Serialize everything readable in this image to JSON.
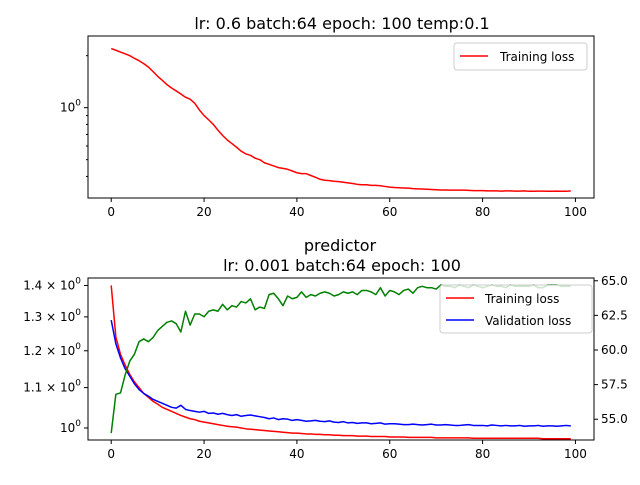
{
  "chart_data": [
    {
      "type": "line",
      "title": "lr: 0.6 batch:64 epoch: 100 temp:0.1",
      "yscale": "log",
      "xlim": [
        -5,
        104
      ],
      "ylim": [
        0.3,
        2.6
      ],
      "x_ticks": [
        0,
        20,
        40,
        60,
        80,
        100
      ],
      "y_ticks": [
        {
          "value": 1.0,
          "label": "10^0"
        }
      ],
      "legend": "top-right",
      "series": [
        {
          "name": "Training loss",
          "color": "#ff0000",
          "axis": "left",
          "x": [
            0,
            1,
            2,
            3,
            4,
            5,
            6,
            7,
            8,
            9,
            10,
            11,
            12,
            13,
            14,
            15,
            16,
            17,
            18,
            19,
            20,
            21,
            22,
            23,
            24,
            25,
            26,
            27,
            28,
            29,
            30,
            31,
            32,
            33,
            34,
            35,
            36,
            37,
            38,
            39,
            40,
            41,
            42,
            43,
            44,
            45,
            46,
            47,
            48,
            49,
            50,
            51,
            52,
            53,
            54,
            55,
            56,
            57,
            58,
            59,
            60,
            61,
            62,
            63,
            64,
            65,
            66,
            67,
            68,
            69,
            70,
            71,
            72,
            73,
            74,
            75,
            76,
            77,
            78,
            79,
            80,
            81,
            82,
            83,
            84,
            85,
            86,
            87,
            88,
            89,
            90,
            91,
            92,
            93,
            94,
            95,
            96,
            97,
            98,
            99
          ],
          "values": [
            2.2,
            2.15,
            2.1,
            2.05,
            2.0,
            1.93,
            1.87,
            1.8,
            1.72,
            1.62,
            1.52,
            1.44,
            1.36,
            1.3,
            1.25,
            1.2,
            1.15,
            1.12,
            1.06,
            0.97,
            0.9,
            0.85,
            0.8,
            0.74,
            0.69,
            0.65,
            0.62,
            0.59,
            0.56,
            0.54,
            0.53,
            0.51,
            0.5,
            0.48,
            0.47,
            0.46,
            0.45,
            0.445,
            0.44,
            0.43,
            0.42,
            0.415,
            0.415,
            0.405,
            0.395,
            0.385,
            0.38,
            0.378,
            0.375,
            0.373,
            0.37,
            0.367,
            0.364,
            0.36,
            0.358,
            0.358,
            0.355,
            0.355,
            0.353,
            0.35,
            0.347,
            0.345,
            0.344,
            0.343,
            0.342,
            0.34,
            0.339,
            0.338,
            0.337,
            0.336,
            0.335,
            0.334,
            0.334,
            0.333,
            0.333,
            0.333,
            0.333,
            0.332,
            0.331,
            0.331,
            0.331,
            0.33,
            0.33,
            0.33,
            0.329,
            0.33,
            0.33,
            0.329,
            0.329,
            0.33,
            0.328,
            0.328,
            0.329,
            0.329,
            0.328,
            0.328,
            0.329,
            0.328,
            0.328,
            0.33
          ]
        }
      ]
    },
    {
      "type": "line",
      "title": "predictor",
      "subtitle": "lr: 0.001 batch:64 epoch: 100",
      "yscale": "log",
      "xlim": [
        -5,
        104
      ],
      "ylim": [
        0.972,
        1.425
      ],
      "y2lim": [
        53.5,
        65.2
      ],
      "x_ticks": [
        0,
        20,
        40,
        60,
        80,
        100
      ],
      "y_ticks": [
        {
          "value": 1.4,
          "label": "1.4 × 10^0"
        },
        {
          "value": 1.3,
          "label": "1.3 × 10^0"
        },
        {
          "value": 1.2,
          "label": "1.2 × 10^0"
        },
        {
          "value": 1.1,
          "label": "1.1 × 10^0"
        },
        {
          "value": 1.0,
          "label": "10^0"
        }
      ],
      "y2_ticks": [
        55.0,
        57.5,
        60.0,
        62.5,
        65.0
      ],
      "legend": "top-right",
      "series": [
        {
          "name": "Training loss",
          "color": "#ff0000",
          "axis": "left",
          "x": [
            0,
            1,
            2,
            3,
            4,
            5,
            6,
            7,
            8,
            9,
            10,
            11,
            12,
            13,
            14,
            15,
            16,
            17,
            18,
            19,
            20,
            21,
            22,
            23,
            24,
            25,
            26,
            27,
            28,
            29,
            30,
            31,
            32,
            33,
            34,
            35,
            36,
            37,
            38,
            39,
            40,
            41,
            42,
            43,
            44,
            45,
            46,
            47,
            48,
            49,
            50,
            51,
            52,
            53,
            54,
            55,
            56,
            57,
            58,
            59,
            60,
            61,
            62,
            63,
            64,
            65,
            66,
            67,
            68,
            69,
            70,
            71,
            72,
            73,
            74,
            75,
            76,
            77,
            78,
            79,
            80,
            81,
            82,
            83,
            84,
            85,
            86,
            87,
            88,
            89,
            90,
            91,
            92,
            93,
            94,
            95,
            96,
            97,
            98,
            99
          ],
          "values": [
            1.4,
            1.24,
            1.19,
            1.16,
            1.135,
            1.115,
            1.1,
            1.085,
            1.075,
            1.065,
            1.058,
            1.05,
            1.045,
            1.04,
            1.035,
            1.03,
            1.026,
            1.022,
            1.02,
            1.016,
            1.014,
            1.012,
            1.01,
            1.008,
            1.006,
            1.004,
            1.003,
            1.002,
            1.0,
            0.998,
            0.997,
            0.996,
            0.995,
            0.994,
            0.993,
            0.992,
            0.991,
            0.99,
            0.989,
            0.988,
            0.988,
            0.987,
            0.986,
            0.986,
            0.985,
            0.985,
            0.984,
            0.984,
            0.983,
            0.983,
            0.982,
            0.982,
            0.982,
            0.981,
            0.981,
            0.981,
            0.98,
            0.98,
            0.98,
            0.98,
            0.979,
            0.979,
            0.979,
            0.979,
            0.978,
            0.978,
            0.978,
            0.978,
            0.978,
            0.978,
            0.977,
            0.977,
            0.977,
            0.977,
            0.977,
            0.977,
            0.977,
            0.977,
            0.976,
            0.976,
            0.976,
            0.976,
            0.976,
            0.976,
            0.976,
            0.976,
            0.976,
            0.976,
            0.976,
            0.976,
            0.976,
            0.976,
            0.976,
            0.975,
            0.975,
            0.975,
            0.975,
            0.975,
            0.975,
            0.975
          ]
        },
        {
          "name": "Validation loss",
          "color": "#0000ff",
          "axis": "left",
          "x": [
            0,
            1,
            2,
            3,
            4,
            5,
            6,
            7,
            8,
            9,
            10,
            11,
            12,
            13,
            14,
            15,
            16,
            17,
            18,
            19,
            20,
            21,
            22,
            23,
            24,
            25,
            26,
            27,
            28,
            29,
            30,
            31,
            32,
            33,
            34,
            35,
            36,
            37,
            38,
            39,
            40,
            41,
            42,
            43,
            44,
            45,
            46,
            47,
            48,
            49,
            50,
            51,
            52,
            53,
            54,
            55,
            56,
            57,
            58,
            59,
            60,
            61,
            62,
            63,
            64,
            65,
            66,
            67,
            68,
            69,
            70,
            71,
            72,
            73,
            74,
            75,
            76,
            77,
            78,
            79,
            80,
            81,
            82,
            83,
            84,
            85,
            86,
            87,
            88,
            89,
            90,
            91,
            92,
            93,
            94,
            95,
            96,
            97,
            98,
            99
          ],
          "values": [
            1.29,
            1.22,
            1.18,
            1.15,
            1.13,
            1.11,
            1.095,
            1.085,
            1.078,
            1.07,
            1.065,
            1.06,
            1.055,
            1.05,
            1.048,
            1.055,
            1.045,
            1.042,
            1.04,
            1.038,
            1.04,
            1.035,
            1.036,
            1.033,
            1.035,
            1.032,
            1.03,
            1.032,
            1.028,
            1.03,
            1.031,
            1.029,
            1.027,
            1.025,
            1.022,
            1.024,
            1.02,
            1.022,
            1.021,
            1.018,
            1.02,
            1.018,
            1.016,
            1.017,
            1.018,
            1.016,
            1.015,
            1.017,
            1.014,
            1.013,
            1.015,
            1.012,
            1.013,
            1.011,
            1.012,
            1.012,
            1.01,
            1.011,
            1.012,
            1.009,
            1.01,
            1.01,
            1.009,
            1.008,
            1.008,
            1.009,
            1.008,
            1.007,
            1.008,
            1.009,
            1.007,
            1.007,
            1.008,
            1.007,
            1.006,
            1.006,
            1.007,
            1.008,
            1.006,
            1.006,
            1.006,
            1.005,
            1.007,
            1.006,
            1.005,
            1.006,
            1.005,
            1.005,
            1.006,
            1.004,
            1.005,
            1.005,
            1.006,
            1.004,
            1.005,
            1.005,
            1.004,
            1.005,
            1.006,
            1.005
          ]
        },
        {
          "color": "#008000",
          "axis": "right",
          "x": [
            0,
            1,
            2,
            3,
            4,
            5,
            6,
            7,
            8,
            9,
            10,
            11,
            12,
            13,
            14,
            15,
            16,
            17,
            18,
            19,
            20,
            21,
            22,
            23,
            24,
            25,
            26,
            27,
            28,
            29,
            30,
            31,
            32,
            33,
            34,
            35,
            36,
            37,
            38,
            39,
            40,
            41,
            42,
            43,
            44,
            45,
            46,
            47,
            48,
            49,
            50,
            51,
            52,
            53,
            54,
            55,
            56,
            57,
            58,
            59,
            60,
            61,
            62,
            63,
            64,
            65,
            66,
            67,
            68,
            69,
            70,
            71,
            72,
            73,
            74,
            75,
            76,
            77,
            78,
            79,
            80,
            81,
            82,
            83,
            84,
            85,
            86,
            87,
            88,
            89,
            90,
            91,
            92,
            93,
            94,
            95,
            96,
            97,
            98,
            99
          ],
          "values": [
            54.0,
            56.8,
            56.9,
            58.2,
            59.2,
            59.7,
            60.6,
            60.8,
            60.6,
            60.9,
            61.4,
            61.7,
            62.0,
            62.1,
            61.9,
            61.3,
            62.8,
            61.8,
            62.6,
            62.6,
            62.4,
            62.8,
            62.9,
            62.8,
            63.3,
            62.9,
            63.2,
            63.1,
            63.5,
            63.4,
            63.7,
            62.9,
            63.1,
            63.0,
            64.0,
            64.1,
            63.7,
            63.2,
            63.9,
            63.7,
            63.8,
            64.2,
            63.8,
            64.0,
            63.9,
            64.1,
            64.2,
            64.1,
            63.9,
            64.0,
            64.2,
            64.1,
            64.2,
            64.0,
            64.3,
            64.3,
            64.2,
            64.0,
            64.5,
            63.9,
            64.3,
            64.2,
            64.0,
            64.3,
            64.4,
            64.1,
            64.5,
            64.6,
            64.5,
            64.5,
            64.4,
            64.7,
            64.6,
            64.6,
            64.5,
            64.7,
            64.6,
            64.5,
            64.7,
            64.6,
            64.5,
            64.6,
            64.7,
            64.6,
            64.6,
            64.5,
            64.7,
            64.6,
            64.6,
            64.6,
            64.6,
            64.7,
            64.5,
            64.5,
            64.7,
            64.7,
            64.7,
            64.6,
            64.6,
            64.6
          ]
        }
      ]
    }
  ]
}
